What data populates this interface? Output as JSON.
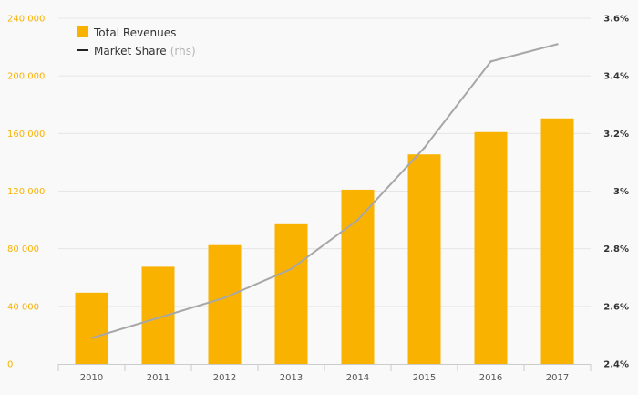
{
  "chart_data": {
    "type": "bar",
    "categories": [
      "2010",
      "2011",
      "2012",
      "2013",
      "2014",
      "2015",
      "2016",
      "2017"
    ],
    "series": [
      {
        "name": "Total Revenues",
        "type": "bar",
        "axis": "left",
        "color": "#f9b200",
        "values": [
          49500,
          67500,
          82500,
          97000,
          121000,
          145500,
          161000,
          170500
        ]
      },
      {
        "name": "Market Share",
        "name_suffix": "(rhs)",
        "type": "line",
        "axis": "right",
        "color": "#a7a7a7",
        "values": [
          2.49,
          2.56,
          2.63,
          2.73,
          2.9,
          3.15,
          3.45,
          3.51
        ]
      }
    ],
    "y_left": {
      "ylim": [
        0,
        240000
      ],
      "ticks": [
        0,
        40000,
        80000,
        120000,
        160000,
        200000,
        240000
      ],
      "tick_labels": [
        "0",
        "40 000",
        "80 000",
        "120 000",
        "160 000",
        "200 000",
        "240 000"
      ],
      "tick_color": "#f9b200"
    },
    "y_right": {
      "ylim": [
        2.4,
        3.6
      ],
      "ticks": [
        2.4,
        2.6,
        2.8,
        3.0,
        3.2,
        3.4,
        3.6
      ],
      "tick_labels": [
        "2.4%",
        "2.6%",
        "2.8%",
        "3%",
        "3.2%",
        "3.4%",
        "3.6%"
      ]
    },
    "grid": true,
    "legend_position": "top-left",
    "title": "",
    "xlabel": "",
    "ylabel": ""
  }
}
